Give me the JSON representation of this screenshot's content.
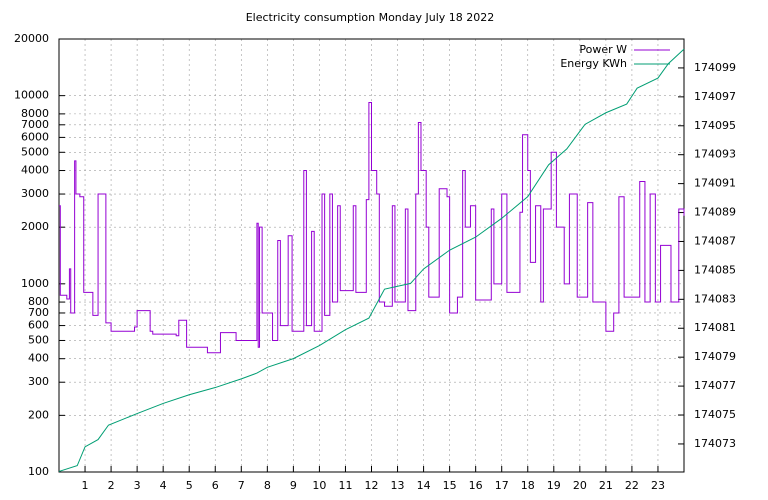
{
  "chart_data": {
    "type": "line",
    "title": "Electricity consumption Monday July 18 2022",
    "xlim": [
      0,
      24
    ],
    "xticks": [
      1,
      2,
      3,
      4,
      5,
      6,
      7,
      8,
      9,
      10,
      11,
      12,
      13,
      14,
      15,
      16,
      17,
      18,
      19,
      20,
      21,
      22,
      23
    ],
    "ylim": [
      100,
      20000
    ],
    "yscale": "log",
    "yticks": [
      100,
      200,
      300,
      400,
      500,
      600,
      700,
      800,
      1000,
      2000,
      3000,
      4000,
      5000,
      6000,
      7000,
      8000,
      10000,
      20000
    ],
    "y2lim": [
      174071.06,
      174101
    ],
    "y2ticks": [
      174073,
      174075,
      174077,
      174079,
      174081,
      174083,
      174085,
      174087,
      174089,
      174091,
      174093,
      174095,
      174097,
      174099
    ],
    "grid": true,
    "legend": "top-right",
    "series": [
      {
        "name": "Power W",
        "color": "#9400d3",
        "style": "steps",
        "x": [
          0,
          0.05,
          0.3,
          0.4,
          0.45,
          0.6,
          0.65,
          0.8,
          0.95,
          1.3,
          1.5,
          1.8,
          2.0,
          2.9,
          3.0,
          3.5,
          3.6,
          4.5,
          4.6,
          4.9,
          5.7,
          6.2,
          6.8,
          7.6,
          7.65,
          7.7,
          7.8,
          8.2,
          8.4,
          8.5,
          8.8,
          8.95,
          9.4,
          9.5,
          9.7,
          9.8,
          10.1,
          10.2,
          10.4,
          10.5,
          10.7,
          10.8,
          11.3,
          11.4,
          11.8,
          11.9,
          12.0,
          12.2,
          12.3,
          12.5,
          12.8,
          12.9,
          13.3,
          13.4,
          13.7,
          13.8,
          13.9,
          14.1,
          14.2,
          14.6,
          14.9,
          15.0,
          15.3,
          15.5,
          15.6,
          15.8,
          16.0,
          16.6,
          16.7,
          17.0,
          17.2,
          17.7,
          17.8,
          18.0,
          18.1,
          18.3,
          18.5,
          18.6,
          18.9,
          19.1,
          19.4,
          19.6,
          19.9,
          20.3,
          20.5,
          21.0,
          21.3,
          21.5,
          21.7,
          22.3,
          22.5,
          22.7,
          22.9,
          23.1,
          23.5,
          23.8,
          24.0
        ],
        "values": [
          2600,
          870,
          830,
          1200,
          700,
          4500,
          3000,
          2900,
          900,
          680,
          3000,
          620,
          560,
          590,
          720,
          560,
          540,
          530,
          640,
          460,
          430,
          550,
          500,
          2100,
          460,
          2000,
          700,
          500,
          1700,
          600,
          1800,
          560,
          4000,
          600,
          1900,
          560,
          3000,
          680,
          3000,
          800,
          2600,
          920,
          2600,
          900,
          2800,
          9200,
          4000,
          3000,
          800,
          760,
          2600,
          800,
          2500,
          720,
          3000,
          7200,
          4000,
          2000,
          850,
          3200,
          2900,
          700,
          850,
          4000,
          2000,
          2600,
          820,
          2500,
          1000,
          3000,
          900,
          2400,
          6200,
          4000,
          1300,
          2600,
          800,
          2500,
          5000,
          2000,
          1000,
          3000,
          850,
          2700,
          800,
          560,
          700,
          2900,
          850,
          3500,
          800,
          3000,
          800,
          1600,
          800,
          2500,
          2300
        ]
      },
      {
        "name": "Energy KWh",
        "color": "#009e73",
        "axis": "y2",
        "x": [
          0,
          0.7,
          1.0,
          1.5,
          1.9,
          3,
          4,
          5,
          6,
          7,
          7.6,
          8,
          9,
          10,
          11,
          11.9,
          12.5,
          13.5,
          14,
          15,
          16,
          17,
          18,
          18.8,
          19.5,
          20.2,
          21,
          21.8,
          22.2,
          23,
          23.4,
          24
        ],
        "values": [
          174071.1,
          174071.5,
          174072.8,
          174073.3,
          174074.3,
          174075.1,
          174075.8,
          174076.4,
          174076.9,
          174077.5,
          174077.9,
          174078.3,
          174078.9,
          174079.8,
          174080.9,
          174081.7,
          174083.7,
          174084.1,
          174085.1,
          174086.4,
          174087.3,
          174088.6,
          174090.1,
          174092.3,
          174093.4,
          174095.1,
          174095.9,
          174096.5,
          174097.6,
          174098.3,
          174099.3,
          174100.3
        ]
      }
    ]
  }
}
